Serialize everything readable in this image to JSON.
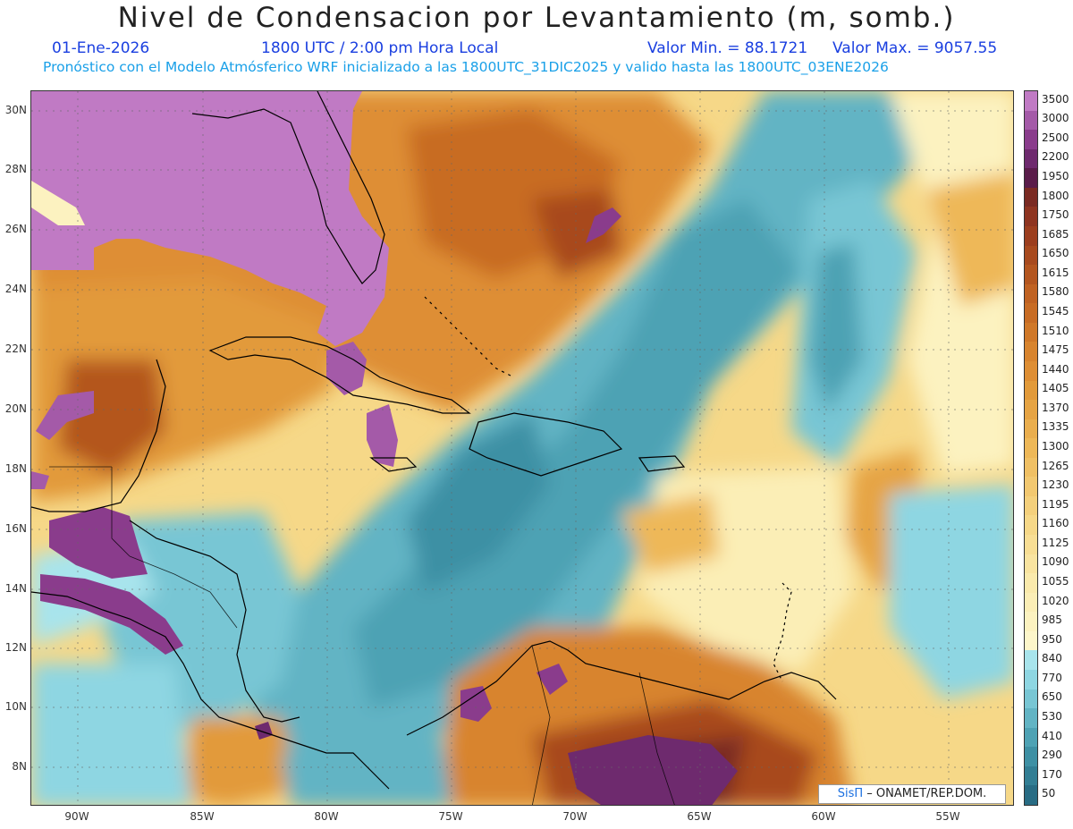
{
  "header": {
    "title": "Nivel de Condensacion por Levantamiento (m, somb.)",
    "date": "01-Ene-2026",
    "time": "1800 UTC / 2:00 pm Hora Local",
    "min_label": "Valor Min. = 88.1721",
    "max_label": "Valor Max. = 9057.55",
    "forecast_line": "Pronóstico con el Modelo Atmósferico WRF inicializado a las 1800UTC_31DIC2025 y valido hasta las  1800UTC_03ENE2026"
  },
  "map": {
    "lat_labels": [
      "30N",
      "28N",
      "26N",
      "24N",
      "22N",
      "20N",
      "18N",
      "16N",
      "14N",
      "12N",
      "10N",
      "8N"
    ],
    "lon_labels": [
      "90W",
      "85W",
      "80W",
      "75W",
      "70W",
      "65W",
      "60W",
      "55W"
    ]
  },
  "colorbar": {
    "labels": [
      "3500",
      "3000",
      "2500",
      "2200",
      "1950",
      "1800",
      "1750",
      "1685",
      "1650",
      "1615",
      "1580",
      "1545",
      "1510",
      "1475",
      "1440",
      "1405",
      "1370",
      "1335",
      "1300",
      "1265",
      "1230",
      "1195",
      "1160",
      "1125",
      "1090",
      "1055",
      "1020",
      "985",
      "950",
      "840",
      "770",
      "650",
      "530",
      "410",
      "290",
      "170",
      "50"
    ],
    "colors": [
      "#c07ac4",
      "#a45aa8",
      "#8a3c8c",
      "#6e2a6e",
      "#5a1c4a",
      "#7a2a22",
      "#8e3420",
      "#9c3e1e",
      "#a84a1e",
      "#b4561f",
      "#c06222",
      "#c86c24",
      "#d07828",
      "#d8842e",
      "#de8e34",
      "#e29a3a",
      "#e6a444",
      "#eaae4e",
      "#eeb858",
      "#f0c064",
      "#f2c870",
      "#f4d07c",
      "#f6d888",
      "#f8de94",
      "#f9e4a0",
      "#faeaac",
      "#fbeeb6",
      "#fcf2c0",
      "#fdf6ca",
      "#a8e4ec",
      "#8ed6e2",
      "#78c6d4",
      "#62b4c4",
      "#4ea2b4",
      "#3e90a4",
      "#327e94",
      "#286c84"
    ]
  },
  "credit": {
    "logo": "SisΠ",
    "text": "– ONAMET/REP.DOM."
  }
}
